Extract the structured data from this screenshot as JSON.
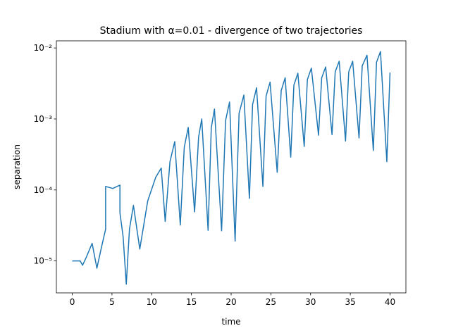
{
  "chart_data": {
    "type": "line",
    "title": "Stadium with α=0.01 - divergence of two trajectories",
    "xlabel": "time",
    "ylabel": "separation",
    "log_y": true,
    "xlim": [
      -2,
      42
    ],
    "ylim": [
      3.55e-06,
      0.0126
    ],
    "xticks": [
      0,
      5,
      10,
      15,
      20,
      25,
      30,
      35,
      40
    ],
    "yticks": [
      {
        "value": 1e-05,
        "label": "10⁻⁵"
      },
      {
        "value": 0.0001,
        "label": "10⁻⁴"
      },
      {
        "value": 0.001,
        "label": "10⁻³"
      },
      {
        "value": 0.01,
        "label": "10⁻²"
      }
    ],
    "series": [
      {
        "name": "separation",
        "color": "#1f77b4",
        "x": [
          0,
          1.0,
          1.3,
          1.8,
          2.5,
          3.1,
          3.7,
          4.2,
          4.2,
          5.1,
          6.0,
          6.0,
          6.4,
          6.8,
          7.2,
          7.7,
          8.5,
          9.5,
          10.5,
          11.2,
          11.7,
          12.3,
          12.9,
          13.6,
          14.1,
          14.6,
          15.4,
          15.9,
          16.3,
          17.1,
          17.5,
          17.9,
          18.8,
          19.3,
          19.8,
          20.5,
          21.0,
          21.6,
          22.3,
          22.7,
          23.2,
          24.0,
          24.4,
          24.9,
          25.8,
          26.3,
          26.8,
          27.5,
          27.9,
          28.4,
          29.2,
          29.6,
          30.1,
          31.0,
          31.4,
          31.9,
          32.7,
          33.1,
          33.6,
          34.4,
          34.8,
          35.3,
          36.1,
          36.5,
          37.1,
          37.9,
          38.3,
          38.8,
          39.6,
          40.0
        ],
        "values": [
          1e-05,
          1e-05,
          8.7e-06,
          1.15e-05,
          1.77e-05,
          7.9e-06,
          1.6e-05,
          2.8e-05,
          0.000112,
          0.000105,
          0.000117,
          4.8e-05,
          2.2e-05,
          4.7e-06,
          2.8e-05,
          6.06e-05,
          1.47e-05,
          7e-05,
          0.00015,
          0.000203,
          3.6e-05,
          0.00025,
          0.00048,
          3.2e-05,
          0.0004,
          0.00076,
          4.9e-05,
          0.00055,
          0.001,
          2.7e-05,
          0.00075,
          0.00138,
          2.66e-05,
          0.00095,
          0.00173,
          1.9e-05,
          0.0012,
          0.00217,
          7.6e-05,
          0.0016,
          0.00275,
          0.000112,
          0.0021,
          0.0033,
          0.000177,
          0.0025,
          0.0038,
          0.00029,
          0.003,
          0.0044,
          0.00041,
          0.0036,
          0.0052,
          0.00059,
          0.0038,
          0.0054,
          0.0006,
          0.0046,
          0.0065,
          0.00049,
          0.0046,
          0.0065,
          0.00054,
          0.0056,
          0.0079,
          0.00036,
          0.0063,
          0.0089,
          0.00025,
          0.0045
        ]
      }
    ]
  }
}
